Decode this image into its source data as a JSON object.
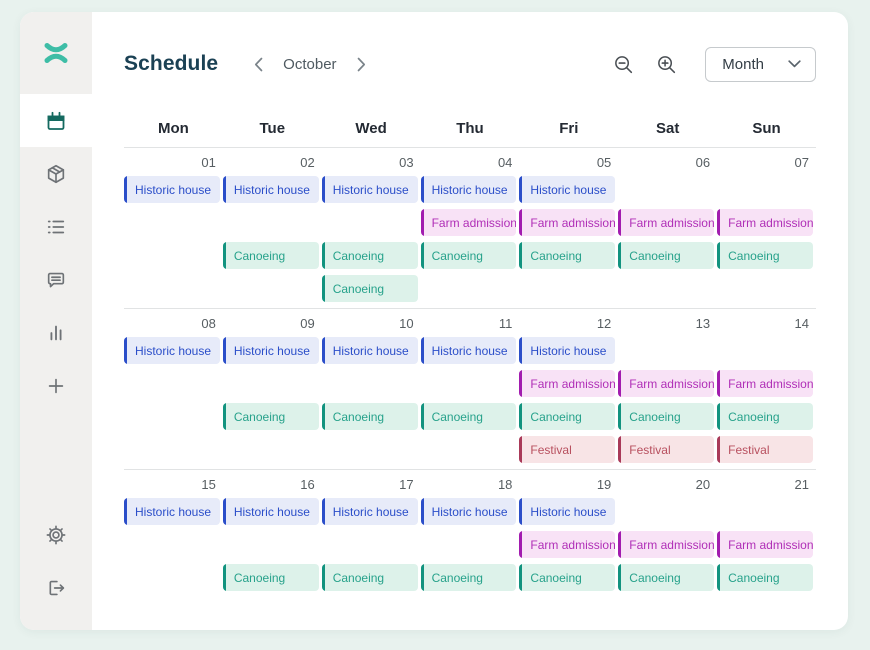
{
  "colors": {
    "page_bg": "#e8f2ee",
    "card_bg": "#ffffff",
    "sidebar_bg": "#f1f0ee",
    "logo_teal": "#3ebda6",
    "active_icon_teal": "#156a60",
    "title_color": "#1b4154"
  },
  "header": {
    "title": "Schedule",
    "month_label": "October",
    "view_selector": {
      "value": "Month"
    }
  },
  "sidebar": {
    "items": [
      {
        "icon": "calendar-icon",
        "active": true
      },
      {
        "icon": "package-icon",
        "active": false
      },
      {
        "icon": "list-icon",
        "active": false
      },
      {
        "icon": "chat-icon",
        "active": false
      },
      {
        "icon": "bar-chart-icon",
        "active": false
      },
      {
        "icon": "plus-icon",
        "active": false
      }
    ],
    "footer_items": [
      {
        "icon": "gear-icon"
      },
      {
        "icon": "logout-icon"
      }
    ]
  },
  "calendar": {
    "day_headers": [
      "Mon",
      "Tue",
      "Wed",
      "Thu",
      "Fri",
      "Sat",
      "Sun"
    ],
    "event_types": {
      "historic": {
        "label": "Historic house",
        "accent": "#2b4ec9",
        "text": "#2b4ec9",
        "bg": "#e7ebf9"
      },
      "farm": {
        "label": "Farm admission",
        "accent": "#a21caf",
        "text": "#b02fb7",
        "bg": "#f8e2f6"
      },
      "canoe": {
        "label": "Canoeing",
        "accent": "#12937f",
        "text": "#27a28b",
        "bg": "#ddf2ea"
      },
      "festival": {
        "label": "Festival",
        "accent": "#a93a59",
        "text": "#b8505f",
        "bg": "#f8e4e6"
      }
    },
    "weeks": [
      {
        "dates": [
          "01",
          "02",
          "03",
          "04",
          "05",
          "06",
          "07"
        ],
        "rows": [
          {
            "type": "historic",
            "days": [
              0,
              1,
              2,
              3,
              4
            ]
          },
          {
            "type": "farm",
            "days": [
              3,
              4,
              5,
              6
            ]
          },
          {
            "type": "canoe",
            "days": [
              1,
              2,
              3,
              4,
              5,
              6
            ]
          },
          {
            "type": "canoe",
            "days": [
              2
            ]
          }
        ]
      },
      {
        "dates": [
          "08",
          "09",
          "10",
          "11",
          "12",
          "13",
          "14"
        ],
        "rows": [
          {
            "type": "historic",
            "days": [
              0,
              1,
              2,
              3,
              4
            ]
          },
          {
            "type": "farm",
            "days": [
              4,
              5,
              6
            ]
          },
          {
            "type": "canoe",
            "days": [
              1,
              2,
              3,
              4,
              5,
              6
            ]
          },
          {
            "type": "festival",
            "days": [
              4,
              5,
              6
            ]
          }
        ]
      },
      {
        "dates": [
          "15",
          "16",
          "17",
          "18",
          "19",
          "20",
          "21"
        ],
        "rows": [
          {
            "type": "historic",
            "days": [
              0,
              1,
              2,
              3,
              4
            ]
          },
          {
            "type": "farm",
            "days": [
              4,
              5,
              6
            ]
          },
          {
            "type": "canoe",
            "days": [
              1,
              2,
              3,
              4,
              5,
              6
            ]
          }
        ]
      }
    ]
  }
}
